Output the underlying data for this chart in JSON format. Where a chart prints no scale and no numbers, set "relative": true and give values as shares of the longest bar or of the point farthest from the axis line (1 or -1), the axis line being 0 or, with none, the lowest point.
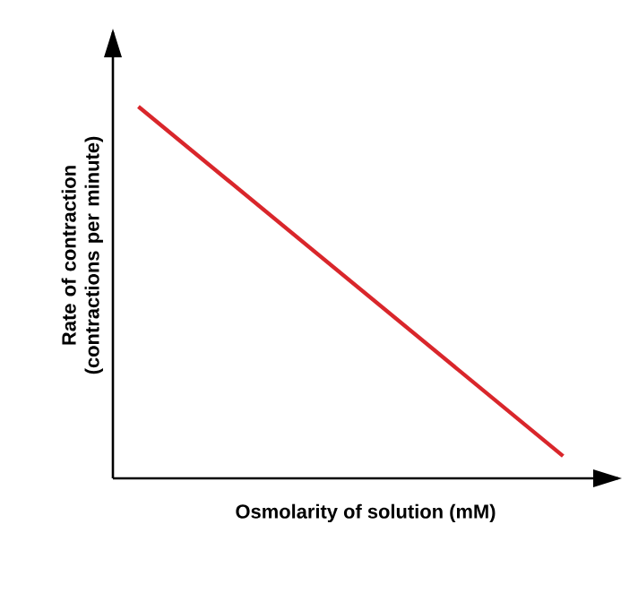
{
  "chart_data": {
    "type": "line",
    "relative": true,
    "xlabel": "Osmolarity of solution (mM)",
    "ylabel": "Rate of contraction (contractions per minute)",
    "categories": [
      null,
      null
    ],
    "series": [
      {
        "color": "#d9262b",
        "values": [
          1,
          0.06
        ]
      }
    ],
    "marker": "none",
    "line_style": "solid",
    "grid": false
  }
}
